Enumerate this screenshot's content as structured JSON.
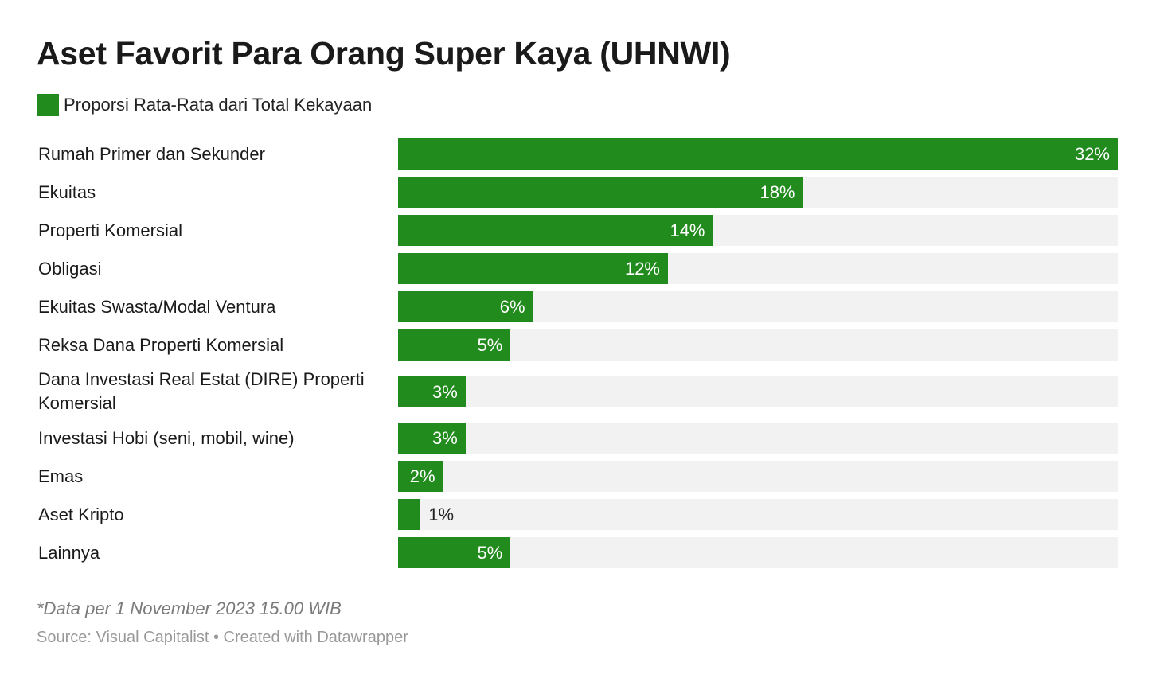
{
  "chart_data": {
    "type": "bar",
    "title": "Aset Favorit Para Orang Super Kaya (UHNWI)",
    "series": [
      {
        "name": "Proporsi Rata-Rata dari Total Kekayaan",
        "color": "#228b1e",
        "values": [
          32,
          18,
          14,
          12,
          6,
          5,
          3,
          3,
          2,
          1,
          5
        ],
        "value_labels": [
          "32%",
          "18%",
          "14%",
          "12%",
          "6%",
          "5%",
          "3%",
          "3%",
          "2%",
          "1%",
          "5%"
        ]
      }
    ],
    "categories": [
      "Rumah Primer dan Sekunder",
      "Ekuitas",
      "Properti Komersial",
      "Obligasi",
      "Ekuitas Swasta/Modal Ventura",
      "Reksa Dana Properti Komersial",
      "Dana Investasi Real Estat (DIRE) Properti Komersial",
      "Investasi Hobi (seni, mobil, wine)",
      "Emas",
      "Aset Kripto",
      "Lainnya"
    ],
    "note": "*Data per 1 November 2023 15.00 WIB",
    "source": "Source: Visual Capitalist • Created with Datawrapper"
  }
}
